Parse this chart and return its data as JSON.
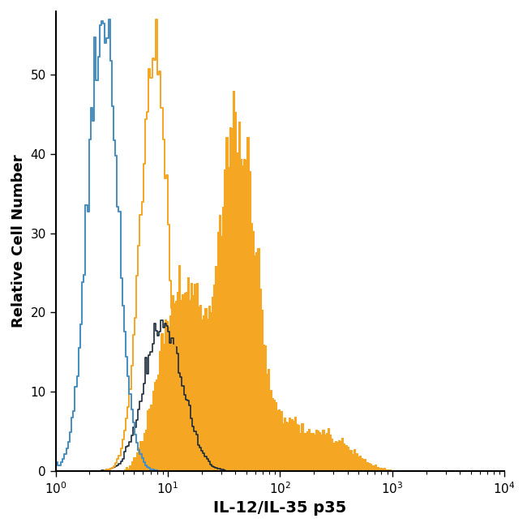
{
  "xlabel": "IL-12/IL-35 p35",
  "ylabel": "Relative Cell Number",
  "xlim_log": [
    0,
    4
  ],
  "ylim": [
    0,
    58
  ],
  "yticks": [
    0,
    10,
    20,
    30,
    40,
    50
  ],
  "background_color": "#ffffff",
  "blue_color": "#4a8fbe",
  "orange_color": "#f5a623",
  "dark_color": "#1c2b3a",
  "blue_peak_log10": 0.42,
  "blue_sigma": 0.13,
  "blue_max": 57,
  "orange_sec_peak_log10": 0.88,
  "orange_sec_sigma": 0.12,
  "orange_sec_max": 57,
  "orange_filled_peak_log10": 1.68,
  "orange_filled_max": 48,
  "dark_peak_log10": 0.9,
  "dark_max": 19,
  "xlabel_fontsize": 14,
  "ylabel_fontsize": 13,
  "tick_fontsize": 11,
  "label_fontweight": "bold"
}
